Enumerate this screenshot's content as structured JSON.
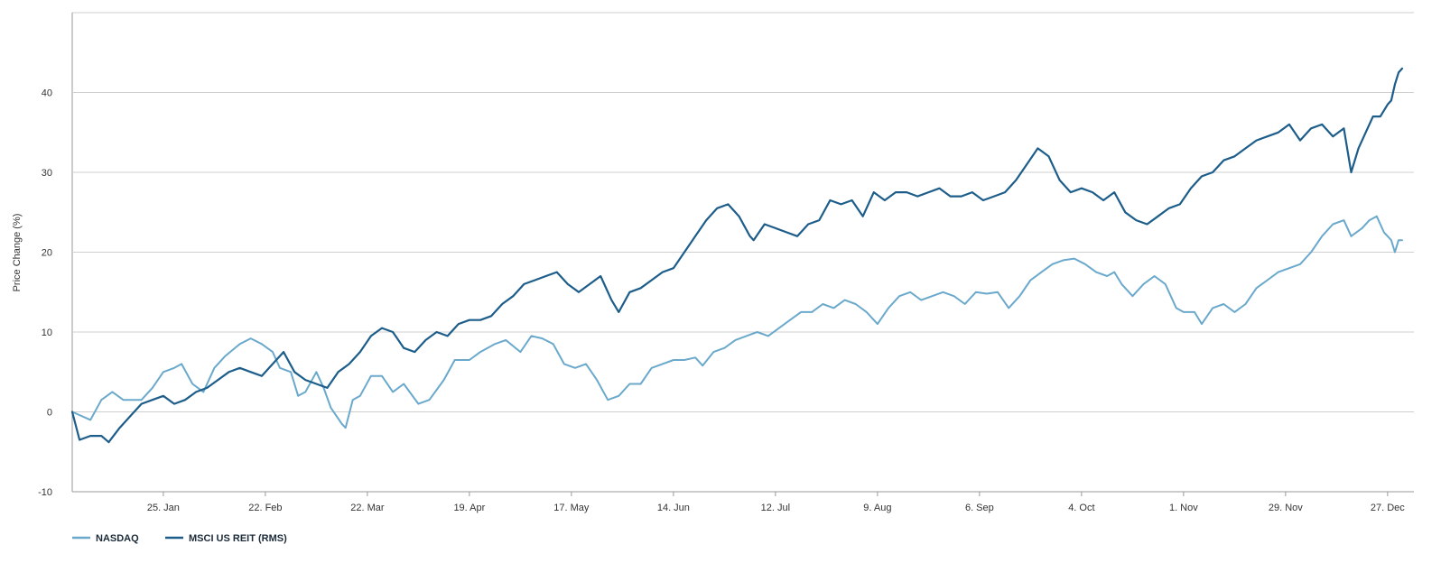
{
  "chart_data": {
    "type": "line",
    "title": "",
    "xlabel": "",
    "ylabel": "Price Change (%)",
    "ylim": [
      -10,
      50
    ],
    "yticks": [
      -10,
      0,
      10,
      20,
      30,
      40
    ],
    "grid": true,
    "legend_position": "bottom-left",
    "x_tick_labels": [
      "25. Jan",
      "22. Feb",
      "22. Mar",
      "19. Apr",
      "17. May",
      "14. Jun",
      "12. Jul",
      "9. Aug",
      "6. Sep",
      "4. Oct",
      "1. Nov",
      "29. Nov",
      "27. Dec"
    ],
    "x_tick_dates": [
      "2021-01-25",
      "2021-02-22",
      "2021-03-22",
      "2021-04-19",
      "2021-05-17",
      "2021-06-14",
      "2021-07-12",
      "2021-08-09",
      "2021-09-06",
      "2021-10-04",
      "2021-11-01",
      "2021-11-29",
      "2021-12-27"
    ],
    "x_range": [
      "2020-12-31",
      "2021-12-31"
    ],
    "series": [
      {
        "name": "NASDAQ",
        "color": "#6aa9cc",
        "points": [
          [
            "2020-12-31",
            0
          ],
          [
            "2021-01-05",
            -1
          ],
          [
            "2021-01-08",
            1.5
          ],
          [
            "2021-01-11",
            2.5
          ],
          [
            "2021-01-14",
            1.5
          ],
          [
            "2021-01-19",
            1.5
          ],
          [
            "2021-01-22",
            3
          ],
          [
            "2021-01-25",
            5
          ],
          [
            "2021-01-28",
            5.5
          ],
          [
            "2021-01-30",
            6
          ],
          [
            "2021-02-02",
            3.5
          ],
          [
            "2021-02-05",
            2.5
          ],
          [
            "2021-02-08",
            5.5
          ],
          [
            "2021-02-11",
            7
          ],
          [
            "2021-02-15",
            8.5
          ],
          [
            "2021-02-18",
            9.2
          ],
          [
            "2021-02-21",
            8.5
          ],
          [
            "2021-02-24",
            7.5
          ],
          [
            "2021-02-26",
            5.5
          ],
          [
            "2021-03-01",
            5
          ],
          [
            "2021-03-03",
            2
          ],
          [
            "2021-03-05",
            2.5
          ],
          [
            "2021-03-08",
            5
          ],
          [
            "2021-03-10",
            3
          ],
          [
            "2021-03-12",
            0.5
          ],
          [
            "2021-03-15",
            -1.5
          ],
          [
            "2021-03-16",
            -2
          ],
          [
            "2021-03-18",
            1.5
          ],
          [
            "2021-03-20",
            2
          ],
          [
            "2021-03-23",
            4.5
          ],
          [
            "2021-03-26",
            4.5
          ],
          [
            "2021-03-29",
            2.5
          ],
          [
            "2021-04-01",
            3.5
          ],
          [
            "2021-04-05",
            1
          ],
          [
            "2021-04-08",
            1.5
          ],
          [
            "2021-04-12",
            4
          ],
          [
            "2021-04-15",
            6.5
          ],
          [
            "2021-04-19",
            6.5
          ],
          [
            "2021-04-22",
            7.5
          ],
          [
            "2021-04-26",
            8.5
          ],
          [
            "2021-04-29",
            9
          ],
          [
            "2021-05-03",
            7.5
          ],
          [
            "2021-05-06",
            9.5
          ],
          [
            "2021-05-09",
            9.2
          ],
          [
            "2021-05-12",
            8.5
          ],
          [
            "2021-05-15",
            6
          ],
          [
            "2021-05-18",
            5.5
          ],
          [
            "2021-05-21",
            6
          ],
          [
            "2021-05-24",
            4
          ],
          [
            "2021-05-27",
            1.5
          ],
          [
            "2021-05-30",
            2
          ],
          [
            "2021-06-02",
            3.5
          ],
          [
            "2021-06-05",
            3.5
          ],
          [
            "2021-06-08",
            5.5
          ],
          [
            "2021-06-11",
            6
          ],
          [
            "2021-06-14",
            6.5
          ],
          [
            "2021-06-17",
            6.5
          ],
          [
            "2021-06-20",
            6.8
          ],
          [
            "2021-06-22",
            5.8
          ],
          [
            "2021-06-25",
            7.5
          ],
          [
            "2021-06-28",
            8
          ],
          [
            "2021-07-01",
            9
          ],
          [
            "2021-07-04",
            9.5
          ],
          [
            "2021-07-07",
            10
          ],
          [
            "2021-07-10",
            9.5
          ],
          [
            "2021-07-13",
            10.5
          ],
          [
            "2021-07-16",
            11.5
          ],
          [
            "2021-07-19",
            12.5
          ],
          [
            "2021-07-22",
            12.5
          ],
          [
            "2021-07-25",
            13.5
          ],
          [
            "2021-07-28",
            13
          ],
          [
            "2021-07-31",
            14
          ],
          [
            "2021-08-03",
            13.5
          ],
          [
            "2021-08-06",
            12.5
          ],
          [
            "2021-08-09",
            11
          ],
          [
            "2021-08-12",
            13
          ],
          [
            "2021-08-15",
            14.5
          ],
          [
            "2021-08-18",
            15
          ],
          [
            "2021-08-21",
            14
          ],
          [
            "2021-08-24",
            14.5
          ],
          [
            "2021-08-27",
            15
          ],
          [
            "2021-08-30",
            14.5
          ],
          [
            "2021-09-02",
            13.5
          ],
          [
            "2021-09-05",
            15
          ],
          [
            "2021-09-08",
            14.8
          ],
          [
            "2021-09-11",
            15
          ],
          [
            "2021-09-14",
            13
          ],
          [
            "2021-09-17",
            14.5
          ],
          [
            "2021-09-20",
            16.5
          ],
          [
            "2021-09-23",
            17.5
          ],
          [
            "2021-09-26",
            18.5
          ],
          [
            "2021-09-29",
            19
          ],
          [
            "2021-10-02",
            19.2
          ],
          [
            "2021-10-05",
            18.5
          ],
          [
            "2021-10-08",
            17.5
          ],
          [
            "2021-10-11",
            17
          ],
          [
            "2021-10-13",
            17.5
          ],
          [
            "2021-10-15",
            16
          ],
          [
            "2021-10-18",
            14.5
          ],
          [
            "2021-10-21",
            16
          ],
          [
            "2021-10-24",
            17
          ],
          [
            "2021-10-27",
            16
          ],
          [
            "2021-10-30",
            13
          ],
          [
            "2021-11-01",
            12.5
          ],
          [
            "2021-11-04",
            12.5
          ],
          [
            "2021-11-06",
            11
          ],
          [
            "2021-11-09",
            13
          ],
          [
            "2021-11-12",
            13.5
          ],
          [
            "2021-11-15",
            12.5
          ],
          [
            "2021-11-18",
            13.5
          ],
          [
            "2021-11-21",
            15.5
          ],
          [
            "2021-11-24",
            16.5
          ],
          [
            "2021-11-27",
            17.5
          ],
          [
            "2021-11-30",
            18
          ],
          [
            "2021-12-03",
            18.5
          ],
          [
            "2021-12-06",
            20
          ],
          [
            "2021-12-09",
            22
          ],
          [
            "2021-12-12",
            23.5
          ],
          [
            "2021-12-15",
            24
          ],
          [
            "2021-12-17",
            22
          ],
          [
            "2021-12-20",
            23
          ],
          [
            "2021-12-22",
            24
          ],
          [
            "2021-12-24",
            24.5
          ],
          [
            "2021-12-26",
            22.5
          ],
          [
            "2021-12-28",
            21.5
          ],
          [
            "2021-12-29",
            20
          ],
          [
            "2021-12-30",
            21.5
          ],
          [
            "2021-12-31",
            21.5
          ]
        ]
      },
      {
        "name": "MSCI US REIT (RMS)",
        "color": "#1d5d8a",
        "points": [
          [
            "2020-12-31",
            0
          ],
          [
            "2021-01-02",
            -3.5
          ],
          [
            "2021-01-05",
            -3
          ],
          [
            "2021-01-08",
            -3
          ],
          [
            "2021-01-10",
            -3.8
          ],
          [
            "2021-01-13",
            -2
          ],
          [
            "2021-01-16",
            -0.5
          ],
          [
            "2021-01-19",
            1
          ],
          [
            "2021-01-22",
            1.5
          ],
          [
            "2021-01-25",
            2
          ],
          [
            "2021-01-28",
            1
          ],
          [
            "2021-01-31",
            1.5
          ],
          [
            "2021-02-03",
            2.5
          ],
          [
            "2021-02-06",
            3
          ],
          [
            "2021-02-09",
            4
          ],
          [
            "2021-02-12",
            5
          ],
          [
            "2021-02-15",
            5.5
          ],
          [
            "2021-02-18",
            5
          ],
          [
            "2021-02-21",
            4.5
          ],
          [
            "2021-02-24",
            6
          ],
          [
            "2021-02-27",
            7.5
          ],
          [
            "2021-03-02",
            5
          ],
          [
            "2021-03-05",
            4
          ],
          [
            "2021-03-08",
            3.5
          ],
          [
            "2021-03-11",
            3
          ],
          [
            "2021-03-14",
            5
          ],
          [
            "2021-03-17",
            6
          ],
          [
            "2021-03-20",
            7.5
          ],
          [
            "2021-03-23",
            9.5
          ],
          [
            "2021-03-26",
            10.5
          ],
          [
            "2021-03-29",
            10
          ],
          [
            "2021-04-01",
            8
          ],
          [
            "2021-04-04",
            7.5
          ],
          [
            "2021-04-07",
            9
          ],
          [
            "2021-04-10",
            10
          ],
          [
            "2021-04-13",
            9.5
          ],
          [
            "2021-04-16",
            11
          ],
          [
            "2021-04-19",
            11.5
          ],
          [
            "2021-04-22",
            11.5
          ],
          [
            "2021-04-25",
            12
          ],
          [
            "2021-04-28",
            13.5
          ],
          [
            "2021-05-01",
            14.5
          ],
          [
            "2021-05-04",
            16
          ],
          [
            "2021-05-07",
            16.5
          ],
          [
            "2021-05-10",
            17
          ],
          [
            "2021-05-13",
            17.5
          ],
          [
            "2021-05-16",
            16
          ],
          [
            "2021-05-19",
            15
          ],
          [
            "2021-05-22",
            16
          ],
          [
            "2021-05-25",
            17
          ],
          [
            "2021-05-28",
            14
          ],
          [
            "2021-05-30",
            12.5
          ],
          [
            "2021-06-02",
            15
          ],
          [
            "2021-06-05",
            15.5
          ],
          [
            "2021-06-08",
            16.5
          ],
          [
            "2021-06-11",
            17.5
          ],
          [
            "2021-06-14",
            18
          ],
          [
            "2021-06-17",
            20
          ],
          [
            "2021-06-20",
            22
          ],
          [
            "2021-06-23",
            24
          ],
          [
            "2021-06-26",
            25.5
          ],
          [
            "2021-06-29",
            26
          ],
          [
            "2021-07-02",
            24.5
          ],
          [
            "2021-07-05",
            22
          ],
          [
            "2021-07-06",
            21.5
          ],
          [
            "2021-07-09",
            23.5
          ],
          [
            "2021-07-12",
            23
          ],
          [
            "2021-07-15",
            22.5
          ],
          [
            "2021-07-18",
            22
          ],
          [
            "2021-07-21",
            23.5
          ],
          [
            "2021-07-24",
            24
          ],
          [
            "2021-07-27",
            26.5
          ],
          [
            "2021-07-30",
            26
          ],
          [
            "2021-08-02",
            26.5
          ],
          [
            "2021-08-05",
            24.5
          ],
          [
            "2021-08-08",
            27.5
          ],
          [
            "2021-08-11",
            26.5
          ],
          [
            "2021-08-14",
            27.5
          ],
          [
            "2021-08-17",
            27.5
          ],
          [
            "2021-08-20",
            27
          ],
          [
            "2021-08-23",
            27.5
          ],
          [
            "2021-08-26",
            28
          ],
          [
            "2021-08-29",
            27
          ],
          [
            "2021-09-01",
            27
          ],
          [
            "2021-09-04",
            27.5
          ],
          [
            "2021-09-07",
            26.5
          ],
          [
            "2021-09-10",
            27
          ],
          [
            "2021-09-13",
            27.5
          ],
          [
            "2021-09-16",
            29
          ],
          [
            "2021-09-19",
            31
          ],
          [
            "2021-09-22",
            33
          ],
          [
            "2021-09-25",
            32
          ],
          [
            "2021-09-28",
            29
          ],
          [
            "2021-10-01",
            27.5
          ],
          [
            "2021-10-04",
            28
          ],
          [
            "2021-10-07",
            27.5
          ],
          [
            "2021-10-10",
            26.5
          ],
          [
            "2021-10-13",
            27.5
          ],
          [
            "2021-10-16",
            25
          ],
          [
            "2021-10-19",
            24
          ],
          [
            "2021-10-22",
            23.5
          ],
          [
            "2021-10-25",
            24.5
          ],
          [
            "2021-10-28",
            25.5
          ],
          [
            "2021-10-31",
            26
          ],
          [
            "2021-11-03",
            28
          ],
          [
            "2021-11-06",
            29.5
          ],
          [
            "2021-11-09",
            30
          ],
          [
            "2021-11-12",
            31.5
          ],
          [
            "2021-11-15",
            32
          ],
          [
            "2021-11-18",
            33
          ],
          [
            "2021-11-21",
            34
          ],
          [
            "2021-11-24",
            34.5
          ],
          [
            "2021-11-27",
            35
          ],
          [
            "2021-11-30",
            36
          ],
          [
            "2021-12-03",
            34
          ],
          [
            "2021-12-06",
            35.5
          ],
          [
            "2021-12-09",
            36
          ],
          [
            "2021-12-12",
            34.5
          ],
          [
            "2021-12-15",
            35.5
          ],
          [
            "2021-12-17",
            30
          ],
          [
            "2021-12-19",
            33
          ],
          [
            "2021-12-21",
            35
          ],
          [
            "2021-12-23",
            37
          ],
          [
            "2021-12-25",
            37
          ],
          [
            "2021-12-27",
            38.5
          ],
          [
            "2021-12-28",
            39
          ],
          [
            "2021-12-29",
            41
          ],
          [
            "2021-12-30",
            42.5
          ],
          [
            "2021-12-31",
            43
          ]
        ]
      }
    ]
  }
}
